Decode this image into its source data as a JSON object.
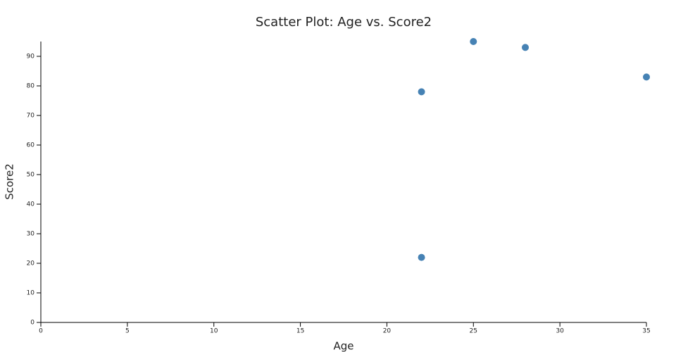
{
  "chart_data": {
    "type": "scatter",
    "title": "Scatter Plot: Age vs. Score2",
    "x_label": "Age",
    "y_label": "Score2",
    "series": [
      {
        "name": "Score2",
        "color": "#4682b4",
        "x": [
          22,
          25,
          28,
          35,
          22
        ],
        "values": [
          78,
          95,
          93,
          83,
          22
        ]
      }
    ],
    "xlim": [
      0,
      35
    ],
    "xticks": [
      0,
      5,
      10,
      15,
      20,
      25,
      30,
      35
    ],
    "ylim": [
      0,
      95
    ],
    "yticks": [
      0,
      10,
      20,
      30,
      40,
      50,
      60,
      70,
      80,
      90
    ],
    "grid": false
  }
}
